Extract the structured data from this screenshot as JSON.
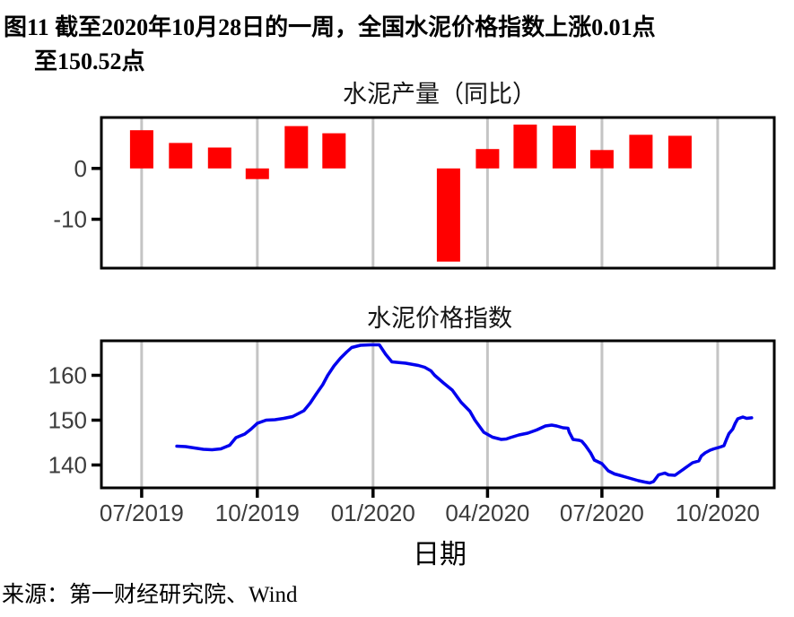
{
  "figure": {
    "title_line1": "图11  截至2020年10月28日的一周，全国水泥价格指数上涨0.01点",
    "title_line2": "至150.52点",
    "source": "来源：第一财经研究院、Wind"
  },
  "style": {
    "grid_color": "#C4C4C4",
    "axis_text_color": "#3C3C3C",
    "border_color": "#000000",
    "bar_color": "#FF0000",
    "line_color": "#0000EE"
  },
  "x_axis": {
    "title": "日期",
    "domain": [
      "2019-05-30",
      "2020-11-15"
    ],
    "ticks": [
      {
        "date": "2019-07-01",
        "label": "07/2019"
      },
      {
        "date": "2019-10-01",
        "label": "10/2019"
      },
      {
        "date": "2020-01-01",
        "label": "01/2020"
      },
      {
        "date": "2020-04-01",
        "label": "04/2020"
      },
      {
        "date": "2020-07-01",
        "label": "07/2020"
      },
      {
        "date": "2020-10-01",
        "label": "10/2020"
      }
    ]
  },
  "chart_data": [
    {
      "type": "bar",
      "title": "水泥产量（同比）",
      "unit": "%",
      "bar_color": "#FF0000",
      "ylim": [
        -19.6,
        10.0
      ],
      "yticks": [
        0,
        -10
      ],
      "grid": "vertical-major-only",
      "categories": [
        "2019-07",
        "2019-08",
        "2019-09",
        "2019-10",
        "2019-11",
        "2019-12",
        "2020-03",
        "2020-04",
        "2020-05",
        "2020-06",
        "2020-07",
        "2020-08",
        "2020-09"
      ],
      "values": [
        7.5,
        5.0,
        4.1,
        -2.1,
        8.3,
        6.9,
        -18.3,
        3.8,
        8.6,
        8.4,
        3.6,
        6.6,
        6.4
      ]
    },
    {
      "type": "line",
      "title": "水泥价格指数",
      "line_color": "#0000EE",
      "ylim": [
        134.9,
        167.7
      ],
      "yticks": [
        160,
        150,
        140
      ],
      "grid": "vertical-major-only",
      "points": [
        [
          "2019-07-29",
          144.2
        ],
        [
          "2019-08-05",
          144.1
        ],
        [
          "2019-08-12",
          143.8
        ],
        [
          "2019-08-19",
          143.5
        ],
        [
          "2019-08-26",
          143.4
        ],
        [
          "2019-09-02",
          143.6
        ],
        [
          "2019-09-09",
          144.4
        ],
        [
          "2019-09-14",
          146.1
        ],
        [
          "2019-09-21",
          146.9
        ],
        [
          "2019-09-26",
          148.0
        ],
        [
          "2019-10-01",
          149.3
        ],
        [
          "2019-10-08",
          150.0
        ],
        [
          "2019-10-15",
          150.1
        ],
        [
          "2019-10-22",
          150.4
        ],
        [
          "2019-10-29",
          150.8
        ],
        [
          "2019-11-07",
          152.1
        ],
        [
          "2019-11-12",
          153.8
        ],
        [
          "2019-11-17",
          155.9
        ],
        [
          "2019-11-22",
          157.9
        ],
        [
          "2019-11-26",
          160.0
        ],
        [
          "2019-12-01",
          162.1
        ],
        [
          "2019-12-06",
          163.8
        ],
        [
          "2019-12-11",
          165.2
        ],
        [
          "2019-12-15",
          166.2
        ],
        [
          "2019-12-22",
          166.7
        ],
        [
          "2019-12-30",
          166.8
        ],
        [
          "2020-01-06",
          166.8
        ],
        [
          "2020-01-11",
          164.7
        ],
        [
          "2020-01-16",
          163.0
        ],
        [
          "2020-01-27",
          162.7
        ],
        [
          "2020-02-06",
          162.2
        ],
        [
          "2020-02-11",
          161.8
        ],
        [
          "2020-02-16",
          161.0
        ],
        [
          "2020-02-19",
          160.0
        ],
        [
          "2020-02-26",
          158.3
        ],
        [
          "2020-03-04",
          156.7
        ],
        [
          "2020-03-11",
          154.0
        ],
        [
          "2020-03-18",
          152.0
        ],
        [
          "2020-03-22",
          150.0
        ],
        [
          "2020-03-29",
          147.3
        ],
        [
          "2020-04-05",
          146.2
        ],
        [
          "2020-04-12",
          145.7
        ],
        [
          "2020-04-16",
          145.8
        ],
        [
          "2020-04-19",
          146.1
        ],
        [
          "2020-04-26",
          146.7
        ],
        [
          "2020-05-03",
          147.1
        ],
        [
          "2020-05-10",
          147.8
        ],
        [
          "2020-05-17",
          148.7
        ],
        [
          "2020-05-22",
          148.9
        ],
        [
          "2020-05-26",
          148.7
        ],
        [
          "2020-05-31",
          148.3
        ],
        [
          "2020-06-04",
          148.2
        ],
        [
          "2020-06-05",
          147.3
        ],
        [
          "2020-06-08",
          145.7
        ],
        [
          "2020-06-13",
          145.5
        ],
        [
          "2020-06-15",
          145.3
        ],
        [
          "2020-06-18",
          144.3
        ],
        [
          "2020-06-22",
          142.7
        ],
        [
          "2020-06-25",
          141.1
        ],
        [
          "2020-07-01",
          140.3
        ],
        [
          "2020-07-06",
          138.7
        ],
        [
          "2020-07-11",
          138.0
        ],
        [
          "2020-07-15",
          137.7
        ],
        [
          "2020-07-20",
          137.3
        ],
        [
          "2020-07-25",
          136.9
        ],
        [
          "2020-07-30",
          136.5
        ],
        [
          "2020-08-04",
          136.2
        ],
        [
          "2020-08-08",
          136.0
        ],
        [
          "2020-08-11",
          136.3
        ],
        [
          "2020-08-15",
          137.8
        ],
        [
          "2020-08-20",
          138.2
        ],
        [
          "2020-08-23",
          137.8
        ],
        [
          "2020-08-28",
          137.7
        ],
        [
          "2020-09-02",
          138.7
        ],
        [
          "2020-09-07",
          139.7
        ],
        [
          "2020-09-11",
          140.5
        ],
        [
          "2020-09-16",
          140.9
        ],
        [
          "2020-09-18",
          142.0
        ],
        [
          "2020-09-21",
          142.7
        ],
        [
          "2020-09-25",
          143.3
        ],
        [
          "2020-09-28",
          143.6
        ],
        [
          "2020-10-03",
          144.0
        ],
        [
          "2020-10-06",
          144.3
        ],
        [
          "2020-10-08",
          145.7
        ],
        [
          "2020-10-10",
          147.0
        ],
        [
          "2020-10-13",
          148.0
        ],
        [
          "2020-10-15",
          149.3
        ],
        [
          "2020-10-17",
          150.3
        ],
        [
          "2020-10-21",
          150.7
        ],
        [
          "2020-10-24",
          150.4
        ],
        [
          "2020-10-28",
          150.52
        ]
      ]
    }
  ]
}
